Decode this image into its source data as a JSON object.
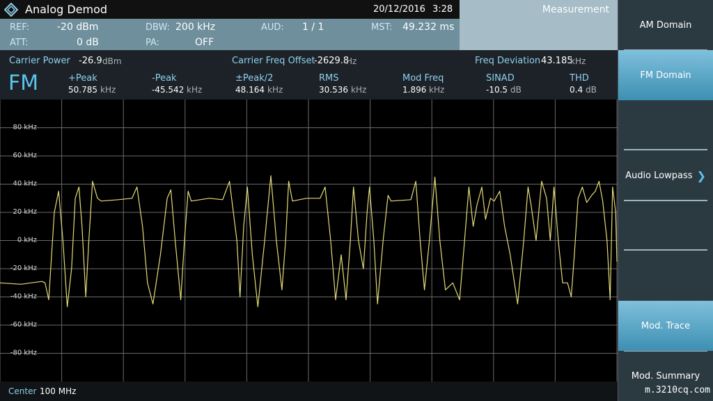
{
  "header": {
    "title": "Analog Demod",
    "date": "20/12/2016",
    "time": "3:28",
    "panel": "Measurement"
  },
  "settings": [
    {
      "label": "REF:",
      "value": "-20 dBm"
    },
    {
      "label": "DBW:",
      "value": "200 kHz"
    },
    {
      "label": "AUD:",
      "value": "1 / 1"
    },
    {
      "label": "MST:",
      "value": "49.232 ms"
    },
    {
      "label": "ATT:",
      "value": "0 dB"
    },
    {
      "label": "PA:",
      "value": "OFF"
    }
  ],
  "carrier": [
    {
      "label": "Carrier Power",
      "value": "-26.9",
      "unit": "dBm"
    },
    {
      "label": "Carrier Freq Offset",
      "value": "-2629.8",
      "unit": "Hz"
    },
    {
      "label": "Freq Deviation",
      "value": "43.185",
      "unit": "kHz"
    }
  ],
  "mode": "FM",
  "results": [
    {
      "label": "+Peak",
      "value": "50.785",
      "unit": "kHz"
    },
    {
      "label": "-Peak",
      "value": "-45.542",
      "unit": "kHz"
    },
    {
      "label": "±Peak/2",
      "value": "48.164",
      "unit": "kHz"
    },
    {
      "label": "RMS",
      "value": "30.536",
      "unit": "kHz"
    },
    {
      "label": "Mod Freq",
      "value": "1.896",
      "unit": "kHz"
    },
    {
      "label": "SINAD",
      "value": "-10.5",
      "unit": "dB"
    },
    {
      "label": "THD",
      "value": "0.4",
      "unit": "dB"
    }
  ],
  "footer": {
    "label": "Center",
    "value": "100 MHz"
  },
  "softkeys": [
    {
      "label": "AM Domain",
      "selected": false
    },
    {
      "label": "FM Domain",
      "selected": true
    },
    {
      "label": "Audio Lowpass",
      "selected": false
    },
    {
      "label": "Mod. Trace",
      "selected": true
    },
    {
      "label": "Mod. Summary",
      "selected": false
    }
  ],
  "watermark": "m.3210cq.com",
  "chart_data": {
    "type": "line",
    "color": "#e6dd78",
    "grid": true,
    "xlim": [
      0,
      10
    ],
    "xticks": [
      0,
      1,
      2,
      3,
      4,
      5,
      6,
      7,
      8,
      9,
      10
    ],
    "ylim": [
      -100,
      100
    ],
    "yticks": [
      {
        "value": 80,
        "label": "80 kHz"
      },
      {
        "value": 60,
        "label": "60 kHz"
      },
      {
        "value": 40,
        "label": "40 kHz"
      },
      {
        "value": 20,
        "label": "20 kHz"
      },
      {
        "value": 0,
        "label": "0 kHz"
      },
      {
        "value": -20,
        "label": "-20 kHz"
      },
      {
        "value": -40,
        "label": "-40 kHz"
      },
      {
        "value": -60,
        "label": "-60 kHz"
      },
      {
        "value": -80,
        "label": "-80 kHz"
      }
    ],
    "x": [
      0,
      0.34,
      0.68,
      0.73,
      0.79,
      0.88,
      0.95,
      1.02,
      1.09,
      1.16,
      1.22,
      1.28,
      1.33,
      1.39,
      1.44,
      1.5,
      1.58,
      1.64,
      1.92,
      2.14,
      2.22,
      2.31,
      2.39,
      2.48,
      2.6,
      2.71,
      2.77,
      2.84,
      2.93,
      2.99,
      3.05,
      3.1,
      3.39,
      3.61,
      3.72,
      3.84,
      3.89,
      3.95,
      4.01,
      4.09,
      4.18,
      4.29,
      4.39,
      4.48,
      4.57,
      4.63,
      4.68,
      4.74,
      4.97,
      5.19,
      5.27,
      5.36,
      5.44,
      5.53,
      5.61,
      5.68,
      5.73,
      5.81,
      5.89,
      5.95,
      5.99,
      6.06,
      6.12,
      6.21,
      6.29,
      6.34,
      6.66,
      6.74,
      6.81,
      6.88,
      6.96,
      7.05,
      7.13,
      7.22,
      7.34,
      7.45,
      7.53,
      7.6,
      7.67,
      7.73,
      7.81,
      7.87,
      7.95,
      8.01,
      8.1,
      8.18,
      8.27,
      8.39,
      8.49,
      8.56,
      8.61,
      8.69,
      8.78,
      8.86,
      8.92,
      8.98,
      9.05,
      9.12,
      9.2,
      9.26,
      9.31,
      9.37,
      9.44,
      9.51,
      9.59,
      9.65,
      9.71,
      9.77,
      9.84,
      9.89,
      9.93,
      9.98,
      10
    ],
    "values": [
      -30,
      -31,
      -29,
      -30,
      -42,
      20,
      35,
      0,
      -47,
      -20,
      30,
      38,
      10,
      -40,
      0,
      42,
      30,
      28,
      29,
      30,
      38,
      10,
      -30,
      -45,
      -10,
      30,
      36,
      0,
      -42,
      0,
      35,
      28,
      30,
      29,
      42,
      0,
      -40,
      10,
      38,
      -10,
      -47,
      0,
      46,
      0,
      -35,
      0,
      42,
      28,
      30,
      30,
      38,
      0,
      -42,
      -10,
      -42,
      0,
      38,
      0,
      -20,
      20,
      38,
      0,
      -45,
      0,
      32,
      28,
      29,
      42,
      0,
      -35,
      0,
      45,
      0,
      -35,
      -30,
      -42,
      0,
      38,
      10,
      25,
      38,
      15,
      30,
      28,
      35,
      10,
      -10,
      -45,
      0,
      38,
      25,
      0,
      42,
      30,
      0,
      38,
      0,
      -30,
      -30,
      -40,
      -10,
      30,
      38,
      27,
      32,
      35,
      42,
      28,
      0,
      -42,
      38,
      20,
      -15
    ]
  }
}
